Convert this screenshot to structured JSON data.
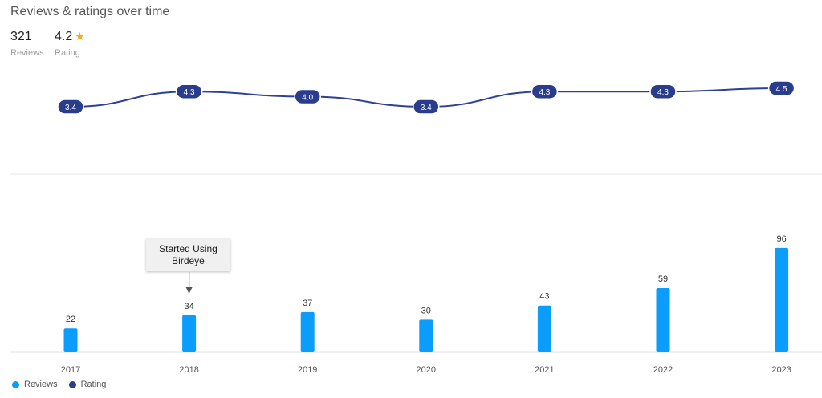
{
  "header": {
    "title": "Reviews & ratings over time",
    "reviews_value": "321",
    "reviews_label": "Reviews",
    "rating_value": "4.2",
    "rating_label": "Rating",
    "star_icon": "star-icon",
    "star_glyph": "★"
  },
  "annotation": {
    "text": "Started Using Birdeye",
    "year": "2018"
  },
  "legend": [
    {
      "label": "Reviews",
      "color": "#0a9dfb"
    },
    {
      "label": "Rating",
      "color": "#2a3c8c"
    }
  ],
  "colors": {
    "reviews": "#0a9dfb",
    "rating": "#2f4196",
    "rating_label_bg": "#2a3c8c",
    "star": "#f5a623"
  },
  "chart_data": {
    "type": "bar",
    "categories": [
      "2017",
      "2018",
      "2019",
      "2020",
      "2021",
      "2022",
      "2023"
    ],
    "series": [
      {
        "name": "Reviews",
        "type": "bar",
        "values": [
          22,
          34,
          37,
          30,
          43,
          59,
          96
        ]
      },
      {
        "name": "Rating",
        "type": "line",
        "values": [
          3.4,
          4.3,
          4.0,
          3.4,
          4.3,
          4.3,
          4.5
        ]
      }
    ],
    "legend_position": "bottom-left"
  }
}
